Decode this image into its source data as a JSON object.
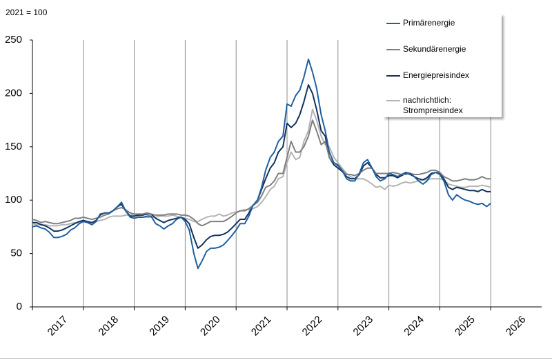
{
  "chart_data": {
    "type": "line",
    "unit_label": "2021 = 100",
    "x": [
      2017,
      2017.08,
      2017.17,
      2017.25,
      2017.33,
      2017.42,
      2017.5,
      2017.58,
      2017.67,
      2017.75,
      2017.83,
      2017.92,
      2018,
      2018.08,
      2018.17,
      2018.25,
      2018.33,
      2018.42,
      2018.5,
      2018.58,
      2018.67,
      2018.75,
      2018.83,
      2018.92,
      2019,
      2019.08,
      2019.17,
      2019.25,
      2019.33,
      2019.42,
      2019.5,
      2019.58,
      2019.67,
      2019.75,
      2019.83,
      2019.92,
      2020,
      2020.08,
      2020.17,
      2020.25,
      2020.33,
      2020.42,
      2020.5,
      2020.58,
      2020.67,
      2020.75,
      2020.83,
      2020.92,
      2021,
      2021.08,
      2021.17,
      2021.25,
      2021.33,
      2021.42,
      2021.5,
      2021.58,
      2021.67,
      2021.75,
      2021.83,
      2021.92,
      2022,
      2022.08,
      2022.17,
      2022.25,
      2022.33,
      2022.42,
      2022.5,
      2022.58,
      2022.67,
      2022.75,
      2022.83,
      2022.92,
      2023,
      2023.08,
      2023.17,
      2023.25,
      2023.33,
      2023.42,
      2023.5,
      2023.58,
      2023.67,
      2023.75,
      2023.83,
      2023.92,
      2024,
      2024.08,
      2024.17,
      2024.25,
      2024.33,
      2024.42,
      2024.5,
      2024.58,
      2024.67,
      2024.75,
      2024.83,
      2024.92,
      2025,
      2025.08,
      2025.17,
      2025.25,
      2025.33,
      2025.42,
      2025.5,
      2025.58,
      2025.67,
      2025.75,
      2025.83,
      2025.92,
      2026
    ],
    "xlim": [
      2017,
      2027
    ],
    "xticks": [
      {
        "value": 2017,
        "label": "2017"
      },
      {
        "value": 2018,
        "label": "2018"
      },
      {
        "value": 2019,
        "label": "2019"
      },
      {
        "value": 2020,
        "label": "2020"
      },
      {
        "value": 2021,
        "label": "2021"
      },
      {
        "value": 2022,
        "label": "2022"
      },
      {
        "value": 2023,
        "label": "2023"
      },
      {
        "value": 2024,
        "label": "2024"
      },
      {
        "value": 2025,
        "label": "2025"
      },
      {
        "value": 2026,
        "label": "2026"
      }
    ],
    "ylim": [
      0,
      250
    ],
    "yticks": [
      0,
      50,
      100,
      150,
      200,
      250
    ],
    "grid": "x",
    "legend": "top-right",
    "series": [
      {
        "name": "Primärenergie",
        "color": "#1f5fa0",
        "values": [
          75,
          76,
          74,
          73,
          70,
          65,
          65,
          66,
          68,
          72,
          74,
          78,
          80,
          79,
          77,
          80,
          87,
          88,
          88,
          90,
          94,
          98,
          90,
          84,
          83,
          84,
          84,
          85,
          85,
          78,
          76,
          73,
          76,
          78,
          82,
          84,
          80,
          72,
          50,
          36,
          43,
          52,
          55,
          55,
          56,
          58,
          62,
          67,
          72,
          78,
          78,
          85,
          95,
          100,
          112,
          128,
          140,
          145,
          155,
          160,
          190,
          188,
          198,
          203,
          215,
          232,
          220,
          205,
          180,
          165,
          145,
          135,
          133,
          128,
          120,
          118,
          118,
          125,
          135,
          138,
          130,
          122,
          118,
          120,
          125,
          124,
          122,
          124,
          126,
          125,
          122,
          118,
          115,
          118,
          124,
          126,
          124,
          118,
          105,
          100,
          105,
          102,
          100,
          99,
          97,
          96,
          97,
          94,
          97
        ]
      },
      {
        "name": "Sekundärenergie",
        "color": "#7f7f7f",
        "values": [
          82,
          81,
          79,
          80,
          79,
          78,
          78,
          79,
          80,
          81,
          83,
          83,
          84,
          83,
          82,
          83,
          84,
          86,
          87,
          90,
          92,
          93,
          91,
          88,
          87,
          87,
          87,
          88,
          87,
          86,
          86,
          86,
          87,
          87,
          87,
          86,
          86,
          85,
          82,
          78,
          76,
          78,
          80,
          80,
          80,
          80,
          82,
          85,
          88,
          90,
          90,
          92,
          95,
          98,
          104,
          112,
          114,
          118,
          125,
          125,
          140,
          155,
          145,
          145,
          150,
          160,
          175,
          165,
          152,
          155,
          140,
          135,
          132,
          128,
          124,
          124,
          123,
          125,
          128,
          130,
          130,
          125,
          125,
          125,
          125,
          126,
          125,
          124,
          124,
          125,
          124,
          124,
          125,
          126,
          128,
          128,
          126,
          122,
          120,
          118,
          118,
          119,
          120,
          119,
          119,
          120,
          122,
          120,
          120
        ]
      },
      {
        "name": "Energiepreisindex",
        "color": "#13315c",
        "values": [
          79,
          79,
          77,
          76,
          74,
          71,
          71,
          72,
          74,
          76,
          78,
          80,
          81,
          80,
          79,
          81,
          86,
          88,
          88,
          90,
          94,
          96,
          90,
          85,
          85,
          86,
          86,
          87,
          87,
          83,
          81,
          79,
          81,
          82,
          83,
          84,
          82,
          78,
          65,
          55,
          58,
          63,
          66,
          67,
          67,
          68,
          70,
          74,
          78,
          82,
          82,
          88,
          95,
          100,
          110,
          120,
          130,
          135,
          145,
          150,
          172,
          168,
          172,
          180,
          192,
          208,
          200,
          185,
          165,
          160,
          140,
          133,
          130,
          127,
          122,
          120,
          120,
          124,
          132,
          135,
          130,
          124,
          121,
          121,
          123,
          123,
          121,
          123,
          125,
          124,
          122,
          120,
          119,
          121,
          125,
          126,
          125,
          120,
          112,
          110,
          112,
          111,
          110,
          109,
          109,
          108,
          110,
          108,
          108
        ]
      },
      {
        "name": "nachrichtlich: Strompreisindex",
        "color": "#b4b4b4",
        "values": [
          78,
          77,
          77,
          77,
          76,
          76,
          76,
          77,
          77,
          78,
          79,
          79,
          80,
          79,
          79,
          80,
          81,
          82,
          84,
          85,
          85,
          85,
          86,
          86,
          86,
          85,
          84,
          84,
          84,
          84,
          85,
          85,
          85,
          86,
          85,
          84,
          83,
          82,
          80,
          80,
          82,
          84,
          85,
          85,
          87,
          85,
          86,
          88,
          89,
          90,
          91,
          91,
          92,
          94,
          98,
          103,
          110,
          113,
          120,
          122,
          135,
          145,
          138,
          140,
          155,
          165,
          185,
          175,
          160,
          152,
          150,
          140,
          135,
          130,
          125,
          122,
          120,
          120,
          120,
          118,
          115,
          112,
          113,
          110,
          114,
          113,
          114,
          116,
          117,
          116,
          117,
          118,
          119,
          119,
          120,
          120,
          120,
          119,
          115,
          114,
          113,
          112,
          112,
          113,
          113,
          113,
          114,
          113,
          112
        ]
      }
    ]
  }
}
